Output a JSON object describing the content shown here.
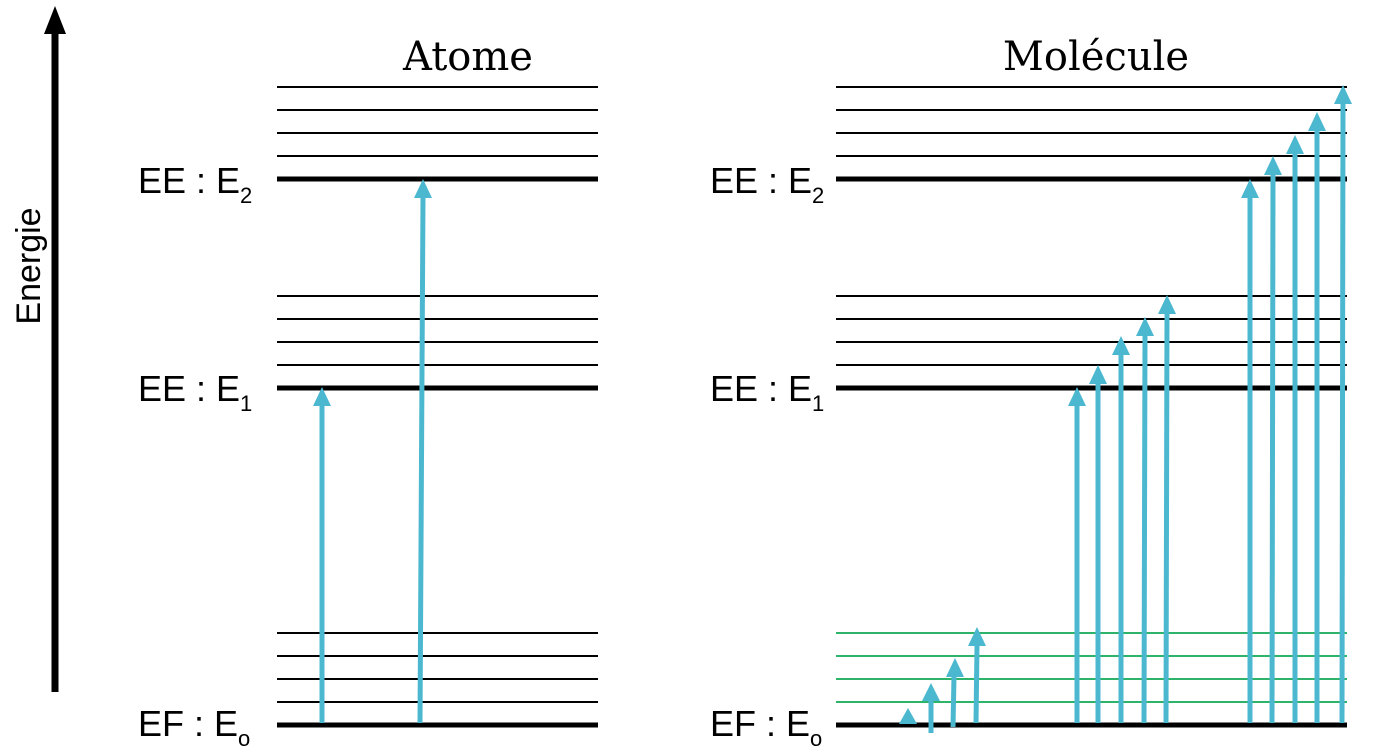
{
  "axis": {
    "label": "Energie"
  },
  "colors": {
    "arrow": "#4BB8CF",
    "green_level": "#2DB36A",
    "line": "#000000"
  },
  "panels": [
    {
      "title": "Atome",
      "labels": [
        {
          "main": "EE : E",
          "sub": "2"
        },
        {
          "main": "EE : E",
          "sub": "1"
        },
        {
          "main": "EF : E",
          "sub": "o"
        }
      ]
    },
    {
      "title": "Molécule",
      "labels": [
        {
          "main": "EE : E",
          "sub": "2"
        },
        {
          "main": "EE : E",
          "sub": "1"
        },
        {
          "main": "EF : E",
          "sub": "o"
        }
      ]
    }
  ]
}
